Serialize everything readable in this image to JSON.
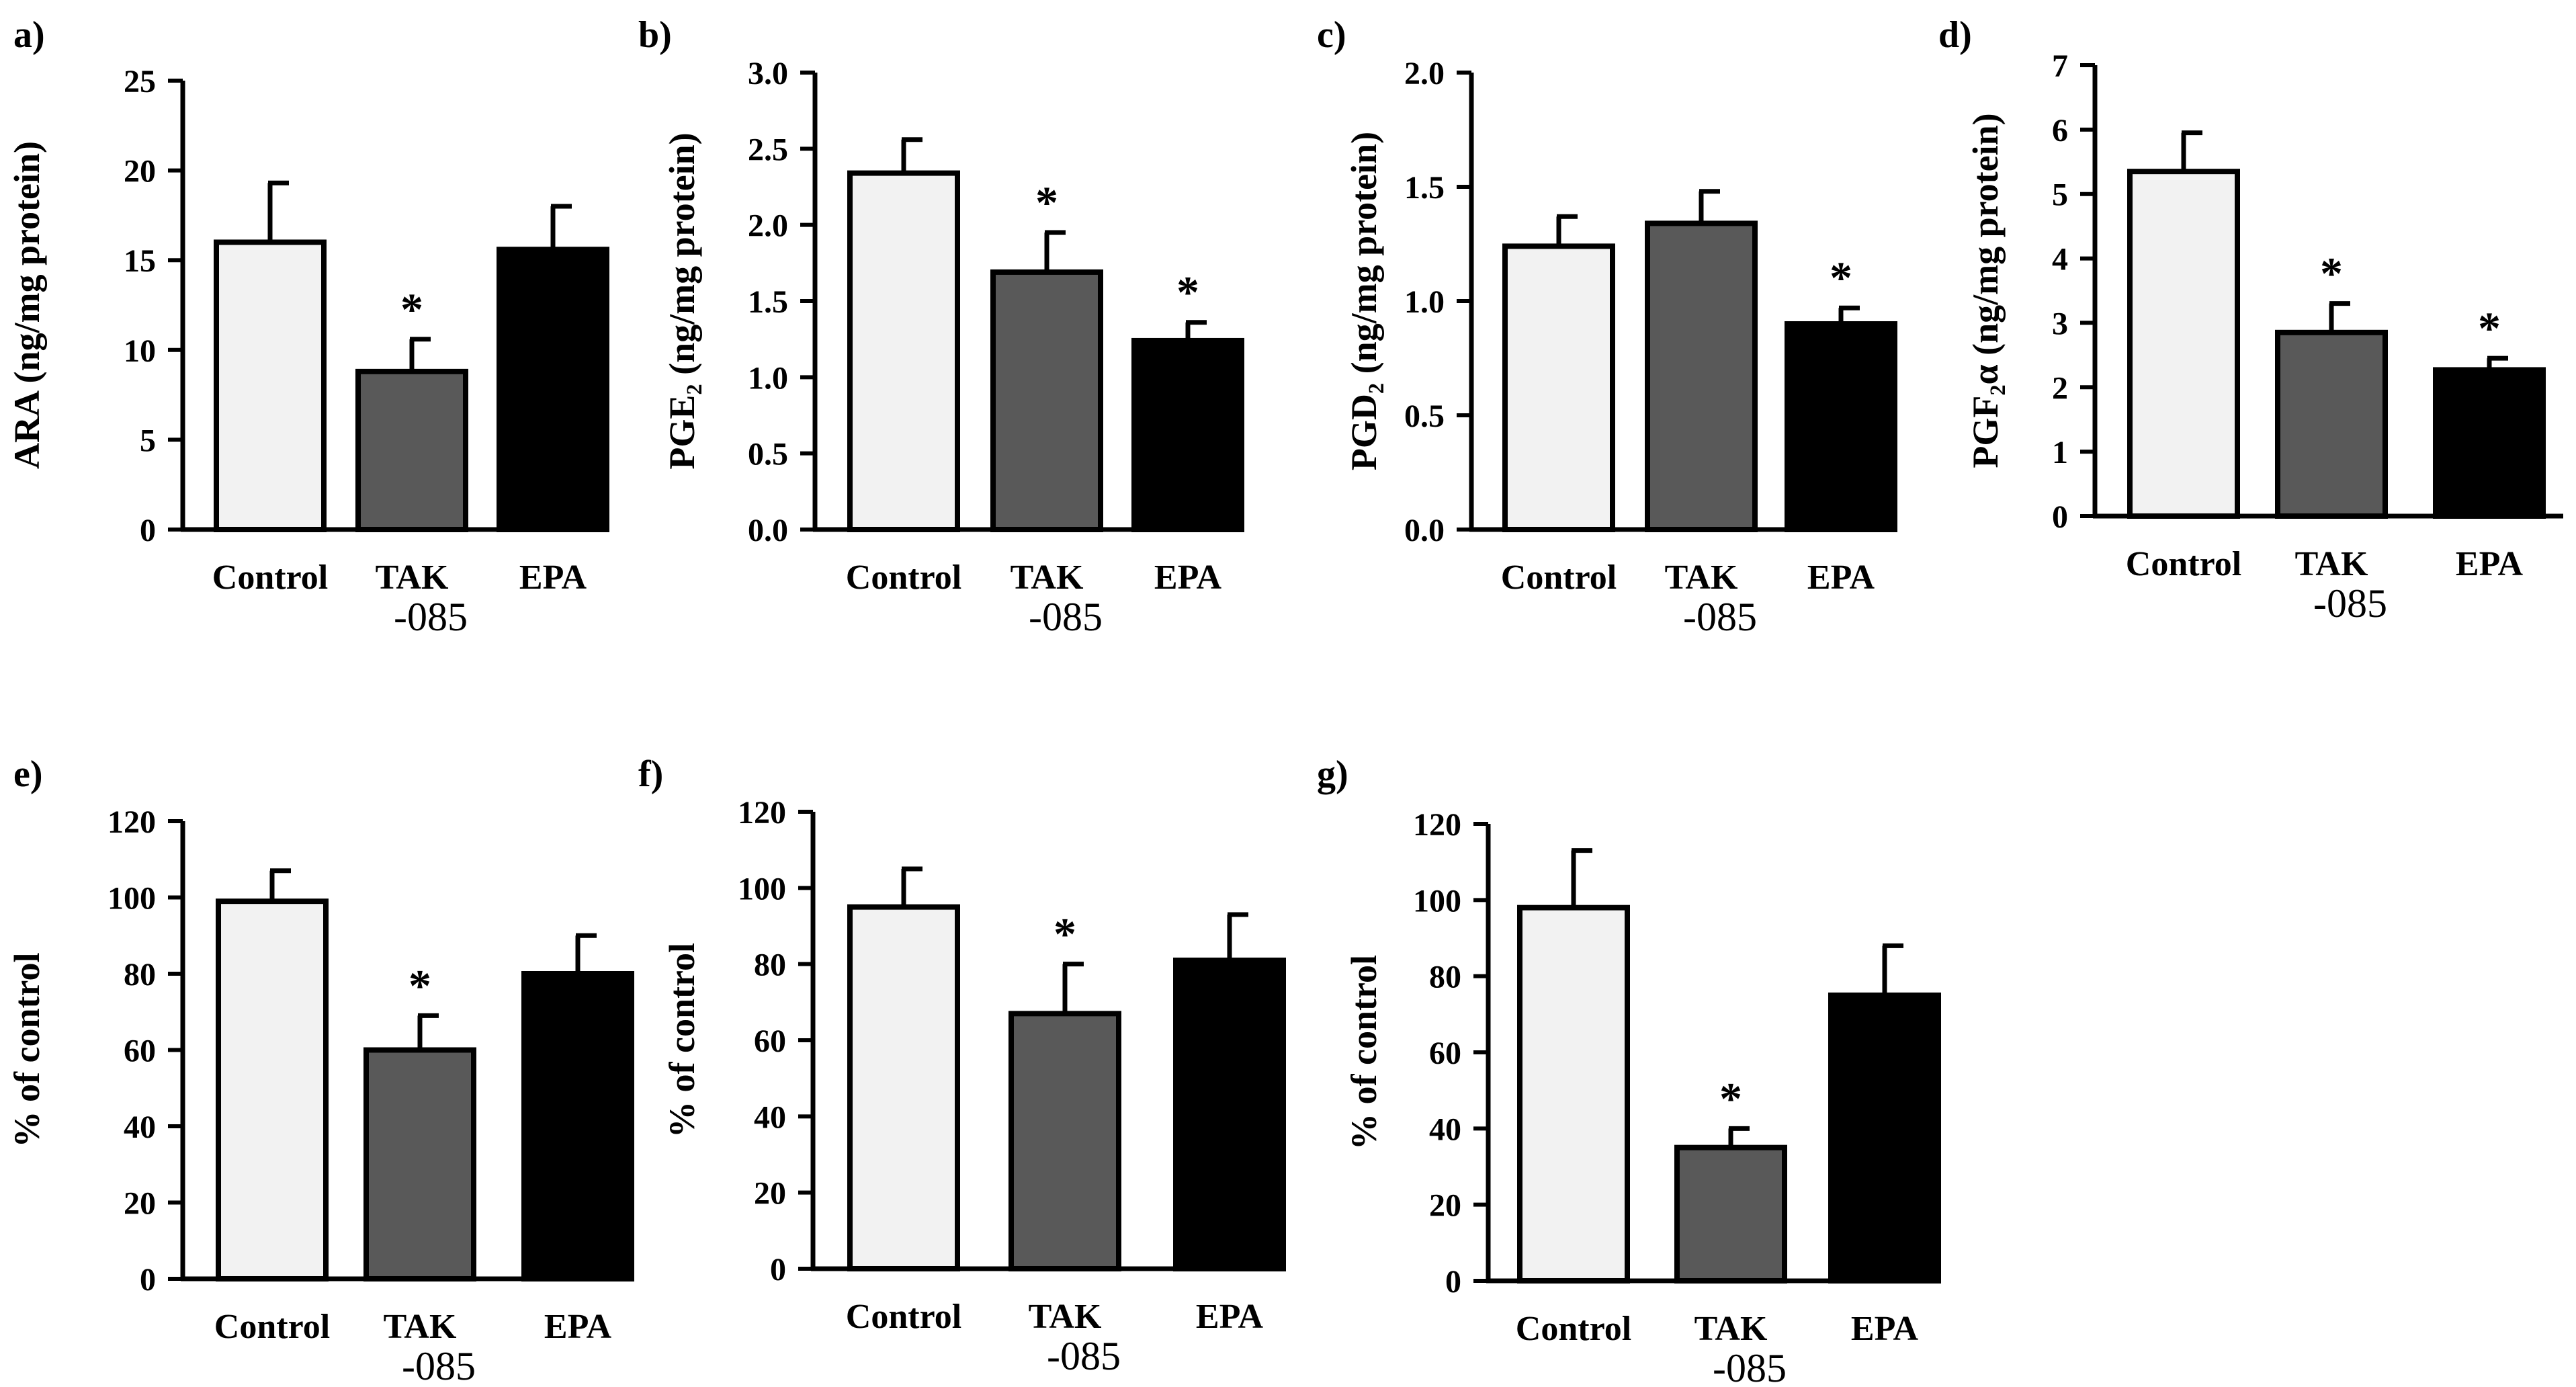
{
  "figure_title": "",
  "colors": {
    "control": "#f2f2f2",
    "tak085": "#595959",
    "epa": "#000000",
    "outline": "#000000"
  },
  "chart_data": [
    {
      "type": "bar",
      "panel": "a)",
      "ylabel": "ARA (ng/mg protein)",
      "categories": [
        "Control",
        "TAK",
        "EPA"
      ],
      "category_sublabels": [
        "",
        "-085",
        ""
      ],
      "values": [
        16.0,
        8.8,
        15.6
      ],
      "errors": [
        3.3,
        1.8,
        2.4
      ],
      "significance": [
        "",
        "*",
        ""
      ],
      "ylim": [
        0,
        25
      ],
      "yticks": [
        "0",
        "5",
        "10",
        "15",
        "20",
        "25"
      ]
    },
    {
      "type": "bar",
      "panel": "b)",
      "ylabel": "PGE₂ (ng/mg protein)",
      "categories": [
        "Control",
        "TAK",
        "EPA"
      ],
      "category_sublabels": [
        "",
        "-085",
        ""
      ],
      "values": [
        2.34,
        1.69,
        1.24
      ],
      "errors": [
        0.22,
        0.26,
        0.12
      ],
      "significance": [
        "",
        "*",
        "*"
      ],
      "ylim": [
        0,
        3.0
      ],
      "yticks": [
        "0.0",
        "0.5",
        "1.0",
        "1.5",
        "2.0",
        "2.5",
        "3.0"
      ]
    },
    {
      "type": "bar",
      "panel": "c)",
      "ylabel": "PGD₂ (ng/mg protein)",
      "categories": [
        "Control",
        "TAK",
        "EPA"
      ],
      "category_sublabels": [
        "",
        "-085",
        ""
      ],
      "values": [
        1.24,
        1.34,
        0.9
      ],
      "errors": [
        0.13,
        0.14,
        0.07
      ],
      "significance": [
        "",
        "",
        "*"
      ],
      "ylim": [
        0,
        2.0
      ],
      "yticks": [
        "0.0",
        "0.5",
        "1.0",
        "1.5",
        "2.0"
      ]
    },
    {
      "type": "bar",
      "panel": "d)",
      "ylabel": "PGF₂α (ng/mg protein)",
      "categories": [
        "Control",
        "TAK",
        "EPA"
      ],
      "category_sublabels": [
        "",
        "-085",
        ""
      ],
      "values": [
        5.35,
        2.85,
        2.27
      ],
      "errors": [
        0.6,
        0.45,
        0.18
      ],
      "significance": [
        "",
        "*",
        "*"
      ],
      "ylim": [
        0,
        7
      ],
      "yticks": [
        "0",
        "1",
        "2",
        "3",
        "4",
        "5",
        "6",
        "7"
      ]
    },
    {
      "type": "bar",
      "panel": "e)",
      "ylabel": "% of control",
      "categories": [
        "Control",
        "TAK",
        "EPA"
      ],
      "category_sublabels": [
        "",
        "-085",
        ""
      ],
      "values": [
        99,
        60,
        80
      ],
      "errors": [
        8,
        9,
        10
      ],
      "significance": [
        "",
        "*",
        ""
      ],
      "ylim": [
        0,
        120
      ],
      "yticks": [
        "0",
        "20",
        "40",
        "60",
        "80",
        "100",
        "120"
      ]
    },
    {
      "type": "bar",
      "panel": "f)",
      "ylabel": "% of control",
      "categories": [
        "Control",
        "TAK",
        "EPA"
      ],
      "category_sublabels": [
        "",
        "-085",
        ""
      ],
      "values": [
        95,
        67,
        81
      ],
      "errors": [
        10,
        13,
        12
      ],
      "significance": [
        "",
        "*",
        ""
      ],
      "ylim": [
        0,
        120
      ],
      "yticks": [
        "0",
        "20",
        "40",
        "60",
        "80",
        "100",
        "120"
      ]
    },
    {
      "type": "bar",
      "panel": "g)",
      "ylabel": "% of control",
      "categories": [
        "Control",
        "TAK",
        "EPA"
      ],
      "category_sublabels": [
        "",
        "-085",
        ""
      ],
      "values": [
        98,
        35,
        75
      ],
      "errors": [
        15,
        5,
        13
      ],
      "significance": [
        "",
        "*",
        ""
      ],
      "ylim": [
        0,
        120
      ],
      "yticks": [
        "0",
        "20",
        "40",
        "60",
        "80",
        "100",
        "120"
      ]
    }
  ]
}
